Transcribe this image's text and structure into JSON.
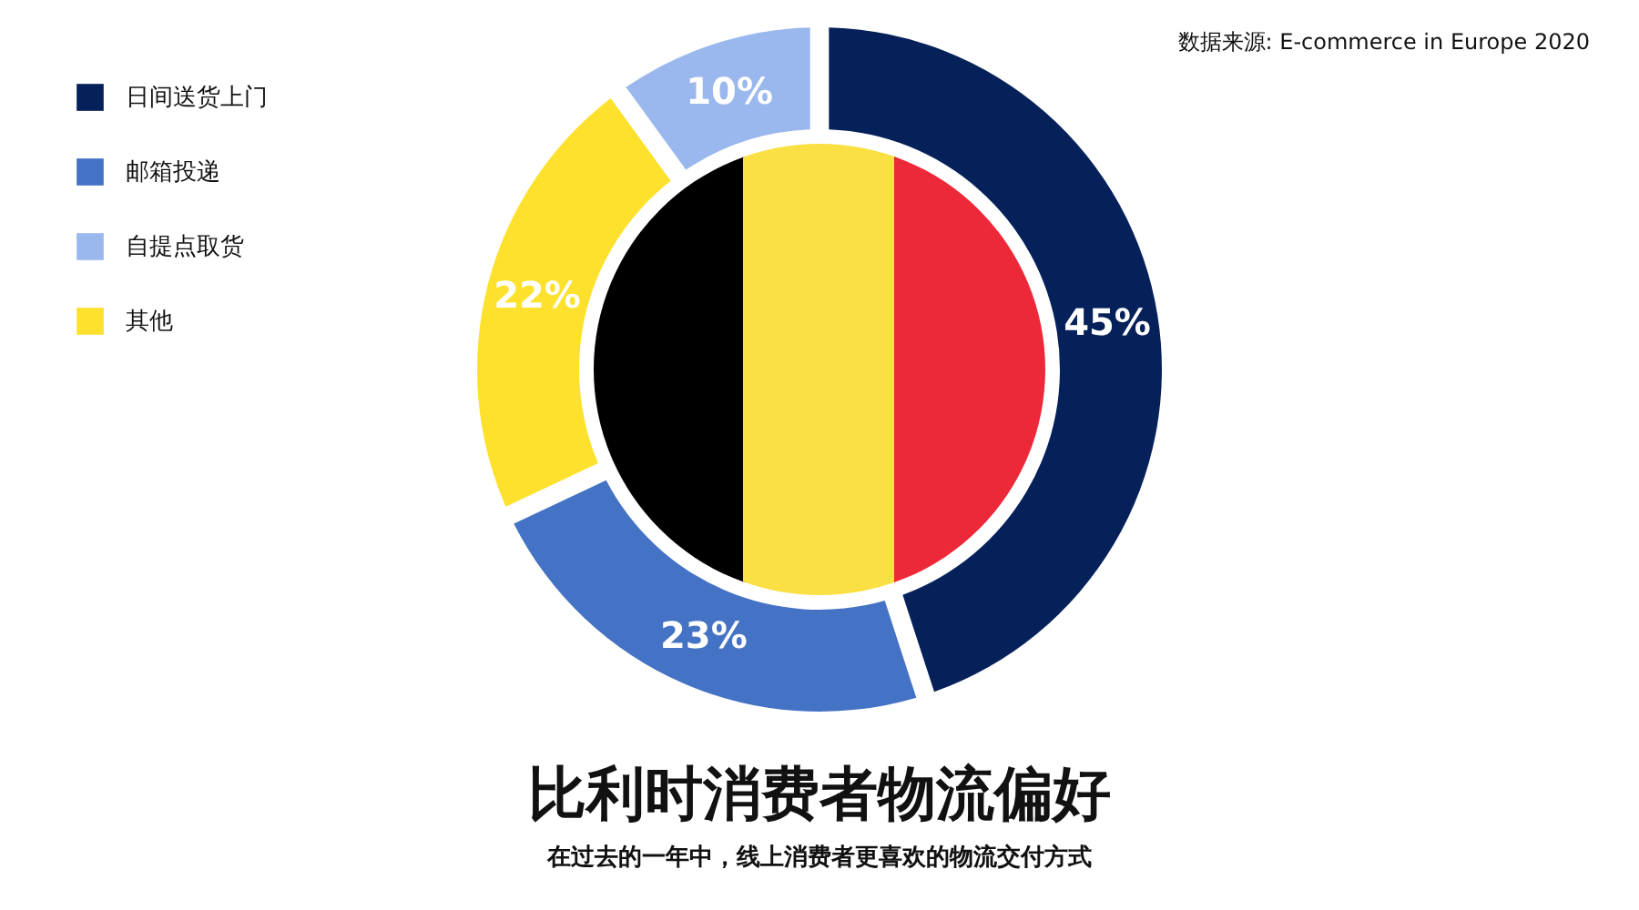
{
  "chart_data": {
    "type": "donut",
    "title": "比利时消费者物流偏好",
    "subtitle": "在过去的一年中，线上消费者更喜欢的物流交付方式",
    "annotations": [
      "数据来源: E-commerce in Europe 2020"
    ],
    "categories": [
      "日间送货上门",
      "邮箱投递",
      "自提点取货",
      "其他"
    ],
    "values": [
      45,
      23,
      10,
      22
    ],
    "colors": [
      "#06215a",
      "#4472c4",
      "#9ab7ee",
      "#fde12d"
    ],
    "value_labels": [
      "45%",
      "23%",
      "10%",
      "22%"
    ],
    "legend": "top left"
  }
}
